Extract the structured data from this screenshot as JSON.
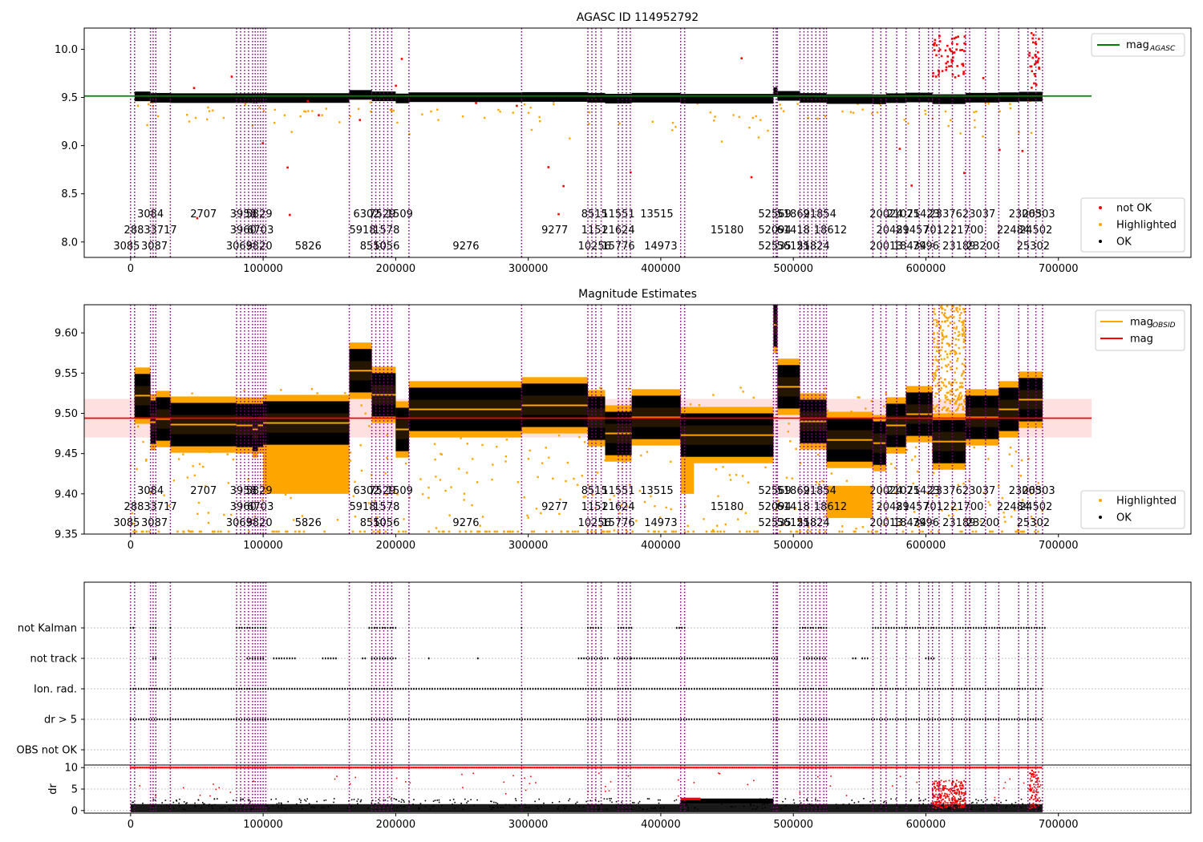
{
  "chart_data": [
    {
      "type": "scatter",
      "title": "AGASC ID 114952792",
      "xlim": [
        -35000,
        800000
      ],
      "ylim": [
        7.84,
        10.22
      ],
      "x_ticks": [
        0,
        100000,
        200000,
        300000,
        400000,
        500000,
        600000,
        700000
      ],
      "x_tick_labels": [
        "0",
        "100000",
        "200000",
        "300000",
        "400000",
        "500000",
        "600000",
        "700000"
      ],
      "y_ticks": [
        8.0,
        8.5,
        9.0,
        9.5,
        10.0
      ],
      "y_tick_labels": [
        "8.0",
        "8.5",
        "9.0",
        "9.5",
        "10.0"
      ],
      "grid": false,
      "legend_top": {
        "placement": "top-right",
        "entries": [
          {
            "label": "mag",
            "sub": "AGASC",
            "color": "#008000",
            "kind": "line"
          }
        ]
      },
      "legend_bottom": {
        "placement": "bottom-right",
        "entries": [
          {
            "label": "not OK",
            "color": "#ff0000",
            "kind": "dot"
          },
          {
            "label": "Highlighted",
            "color": "#ffa500",
            "kind": "dot"
          },
          {
            "label": "OK",
            "color": "#000000",
            "kind": "dot"
          }
        ]
      },
      "reference_line": {
        "value": 9.515,
        "color": "#008000",
        "x_range": [
          -35000,
          725000
        ]
      }
    },
    {
      "type": "scatter",
      "title": "Magnitude Estimates",
      "xlim": [
        -35000,
        800000
      ],
      "ylim": [
        9.35,
        9.635
      ],
      "x_ticks": [
        0,
        100000,
        200000,
        300000,
        400000,
        500000,
        600000,
        700000
      ],
      "x_tick_labels": [
        "0",
        "100000",
        "200000",
        "300000",
        "400000",
        "500000",
        "600000",
        "700000"
      ],
      "y_ticks": [
        9.35,
        9.4,
        9.45,
        9.5,
        9.55,
        9.6
      ],
      "y_tick_labels": [
        "9.35",
        "9.40",
        "9.45",
        "9.50",
        "9.55",
        "9.60"
      ],
      "grid": false,
      "legend_top": {
        "placement": "top-right",
        "entries": [
          {
            "label": "mag",
            "sub": "OBSID",
            "color": "#ffa500",
            "kind": "line"
          },
          {
            "label": "mag",
            "sub": "",
            "color": "#ff0000",
            "kind": "line"
          }
        ]
      },
      "legend_bottom": {
        "placement": "bottom-right",
        "entries": [
          {
            "label": "Highlighted",
            "color": "#ffa500",
            "kind": "dot"
          },
          {
            "label": "OK",
            "color": "#000000",
            "kind": "dot"
          }
        ]
      },
      "mean_line": {
        "value": 9.494,
        "color": "#ff0000",
        "band": [
          9.47,
          9.518
        ],
        "x_range": [
          -35000,
          725000
        ]
      }
    },
    {
      "type": "scatter",
      "title": "",
      "xlim": [
        -35000,
        800000
      ],
      "ylim": [
        -0.5,
        5.5
      ],
      "y_categories": [
        "OBS not OK",
        "dr > 5",
        "Ion. rad.",
        "not track",
        "not Kalman"
      ],
      "grid": true,
      "flag_rows": {
        "not Kalman": [
          [
            0,
            3000
          ],
          [
            15000,
            20000
          ],
          [
            30000,
            31000
          ],
          [
            80000,
            102000
          ],
          [
            180000,
            200000
          ],
          [
            295000,
            296000
          ],
          [
            345000,
            355000
          ],
          [
            368000,
            378000
          ],
          [
            412000,
            418000
          ],
          [
            485000,
            488000
          ],
          [
            505000,
            525000
          ],
          [
            560000,
            690000
          ]
        ],
        "not track": [
          [
            17000,
            19000
          ],
          [
            88000,
            100000
          ],
          [
            108000,
            125000
          ],
          [
            145000,
            155000
          ],
          [
            175000,
            177000
          ],
          [
            182000,
            200000
          ],
          [
            225000,
            226000
          ],
          [
            262000,
            263000
          ],
          [
            338000,
            360000
          ],
          [
            365000,
            377000
          ],
          [
            378000,
            488000
          ],
          [
            508000,
            525000
          ],
          [
            545000,
            548000
          ],
          [
            552000,
            556000
          ],
          [
            600000,
            606000
          ]
        ],
        "Ion. rad.": [
          [
            0,
            688000
          ]
        ],
        "dr > 5": [
          [
            0,
            688000
          ]
        ],
        "OBS not OK": []
      }
    },
    {
      "type": "scatter",
      "title": "",
      "ylabel": "dr",
      "xlim": [
        -35000,
        800000
      ],
      "ylim": [
        -0.6,
        10.6
      ],
      "x_ticks": [
        0,
        100000,
        200000,
        300000,
        400000,
        500000,
        600000,
        700000
      ],
      "x_tick_labels": [
        "0",
        "100000",
        "200000",
        "300000",
        "400000",
        "500000",
        "600000",
        "700000"
      ],
      "y_ticks": [
        0,
        5,
        10
      ],
      "y_tick_labels": [
        "0",
        "5",
        "10"
      ],
      "grid": true
    }
  ],
  "segments": [
    {
      "start": 0,
      "end": 3000,
      "label": "3085",
      "row": 2,
      "lx": -3000
    },
    {
      "start": 3000,
      "end": 15000,
      "label": "3084",
      "row": 0,
      "lx": 15000,
      "mag": 9.522
    },
    {
      "start": 15000,
      "end": 19000,
      "label": "2883",
      "row": 1,
      "lx": 5000,
      "mag": 9.489
    },
    {
      "start": 19000,
      "end": 30000,
      "label": "3717",
      "row": 1,
      "lx": 25000,
      "mag": 9.493
    },
    {
      "start": 19000,
      "end": 30000,
      "label": "3087",
      "row": 2,
      "lx": 18000
    },
    {
      "start": 30000,
      "end": 80000,
      "label": "2707",
      "row": 0,
      "lx": 55000,
      "mag": 9.486
    },
    {
      "start": 80000,
      "end": 100000,
      "label": "3958",
      "row": 0,
      "lx": 85000,
      "mag": 9.485
    },
    {
      "start": 80000,
      "end": 100000,
      "label": "3960",
      "row": 1,
      "lx": 85000
    },
    {
      "start": 80000,
      "end": 100000,
      "label": "3069",
      "row": 2,
      "lx": 82000
    },
    {
      "start": 92000,
      "end": 96000,
      "label": "5829",
      "row": 0,
      "lx": 97000,
      "mag": 9.48
    },
    {
      "start": 92000,
      "end": 96000,
      "label": "6703",
      "row": 1,
      "lx": 98000
    },
    {
      "start": 92000,
      "end": 96000,
      "label": "3820",
      "row": 2,
      "lx": 97000
    },
    {
      "start": 100000,
      "end": 165000,
      "label": "5826",
      "row": 2,
      "lx": 134000,
      "mag": 9.488
    },
    {
      "start": 165000,
      "end": 182000,
      "label": "6302",
      "row": 0,
      "lx": 178000,
      "mag": 9.553
    },
    {
      "start": 165000,
      "end": 182000,
      "label": "5918",
      "row": 1,
      "lx": 175000
    },
    {
      "start": 165000,
      "end": 182000,
      "label": "8550",
      "row": 2,
      "lx": 183000
    },
    {
      "start": 182000,
      "end": 200000,
      "label": "7529",
      "row": 0,
      "lx": 190000,
      "mag": 9.523
    },
    {
      "start": 182000,
      "end": 200000,
      "label": "1578",
      "row": 1,
      "lx": 193000
    },
    {
      "start": 182000,
      "end": 200000,
      "label": "1056",
      "row": 2,
      "lx": 193000
    },
    {
      "start": 200000,
      "end": 210000,
      "label": "1509",
      "row": 0,
      "lx": 203000,
      "mag": 9.48
    },
    {
      "start": 210000,
      "end": 295000,
      "label": "9276",
      "row": 2,
      "lx": 253000,
      "mag": 9.505
    },
    {
      "start": 295000,
      "end": 345000,
      "label": "9277",
      "row": 1,
      "lx": 320000,
      "mag": 9.51
    },
    {
      "start": 345000,
      "end": 358000,
      "label": "8515",
      "row": 0,
      "lx": 350000,
      "mag": 9.494
    },
    {
      "start": 345000,
      "end": 358000,
      "label": "1151",
      "row": 1,
      "lx": 350000
    },
    {
      "start": 345000,
      "end": 358000,
      "label": "10256",
      "row": 2,
      "lx": 350000
    },
    {
      "start": 358000,
      "end": 378000,
      "label": "11551",
      "row": 0,
      "lx": 368000,
      "mag": 9.475
    },
    {
      "start": 358000,
      "end": 378000,
      "label": "21624",
      "row": 1,
      "lx": 368000
    },
    {
      "start": 358000,
      "end": 378000,
      "label": "15776",
      "row": 2,
      "lx": 368000
    },
    {
      "start": 378000,
      "end": 415000,
      "label": "13515",
      "row": 0,
      "lx": 397000,
      "mag": 9.495
    },
    {
      "start": 378000,
      "end": 415000,
      "label": "14973",
      "row": 2,
      "lx": 400000
    },
    {
      "start": 415000,
      "end": 485000,
      "label": "15180",
      "row": 1,
      "lx": 450000,
      "mag": 9.473
    },
    {
      "start": 485000,
      "end": 488000,
      "label": "52569",
      "row": 0,
      "lx": 486000,
      "mag": 9.61
    },
    {
      "start": 485000,
      "end": 488000,
      "label": "52094",
      "row": 1,
      "lx": 486000
    },
    {
      "start": 485000,
      "end": 488000,
      "label": "52535",
      "row": 2,
      "lx": 486000
    },
    {
      "start": 488000,
      "end": 505000,
      "label": "51869",
      "row": 0,
      "lx": 500000,
      "mag": 9.533
    },
    {
      "start": 488000,
      "end": 505000,
      "label": "61418",
      "row": 1,
      "lx": 500000
    },
    {
      "start": 488000,
      "end": 505000,
      "label": "56155",
      "row": 2,
      "lx": 500000
    },
    {
      "start": 505000,
      "end": 525000,
      "label": "21854",
      "row": 0,
      "lx": 520000,
      "mag": 9.49
    },
    {
      "start": 505000,
      "end": 525000,
      "label": "18612",
      "row": 1,
      "lx": 528000
    },
    {
      "start": 505000,
      "end": 525000,
      "label": "21824",
      "row": 2,
      "lx": 515000
    },
    {
      "start": 525000,
      "end": 560000,
      "label": "20024",
      "row": 0,
      "lx": 570000,
      "mag": 9.467
    },
    {
      "start": 560000,
      "end": 570000,
      "label": "20481",
      "row": 1,
      "lx": 575000,
      "mag": 9.463
    },
    {
      "start": 560000,
      "end": 570000,
      "label": "20013",
      "row": 2,
      "lx": 570000
    },
    {
      "start": 570000,
      "end": 585000,
      "label": "21075",
      "row": 0,
      "lx": 583000,
      "mag": 9.485
    },
    {
      "start": 570000,
      "end": 585000,
      "label": "29457",
      "row": 1,
      "lx": 590000
    },
    {
      "start": 570000,
      "end": 585000,
      "label": "18434",
      "row": 2,
      "lx": 588000
    },
    {
      "start": 585000,
      "end": 605000,
      "label": "21423",
      "row": 0,
      "lx": 598000,
      "mag": 9.499
    },
    {
      "start": 585000,
      "end": 605000,
      "label": "7012",
      "row": 1,
      "lx": 608000
    },
    {
      "start": 585000,
      "end": 605000,
      "label": "7996",
      "row": 2,
      "lx": 600000
    },
    {
      "start": 605000,
      "end": 630000,
      "label": "23376",
      "row": 0,
      "lx": 615000,
      "mag": 9.465
    },
    {
      "start": 605000,
      "end": 630000,
      "label": "21700",
      "row": 1,
      "lx": 631000
    },
    {
      "start": 605000,
      "end": 630000,
      "label": "23189",
      "row": 2,
      "lx": 625000
    },
    {
      "start": 630000,
      "end": 655000,
      "label": "23037",
      "row": 0,
      "lx": 640000,
      "mag": 9.495
    },
    {
      "start": 630000,
      "end": 655000,
      "label": "23200",
      "row": 2,
      "lx": 643000
    },
    {
      "start": 655000,
      "end": 670000,
      "label": "23003",
      "row": 0,
      "lx": 675000,
      "mag": 9.505
    },
    {
      "start": 655000,
      "end": 670000,
      "label": "22484",
      "row": 1,
      "lx": 666000
    },
    {
      "start": 670000,
      "end": 688000,
      "label": "26503",
      "row": 0,
      "lx": 685000,
      "mag": 9.517
    },
    {
      "start": 670000,
      "end": 688000,
      "label": "24502",
      "row": 1,
      "lx": 683000
    },
    {
      "start": 670000,
      "end": 688000,
      "label": "25302",
      "row": 2,
      "lx": 681000
    }
  ],
  "obsid_lines": [
    0,
    3000,
    15000,
    17000,
    19000,
    30000,
    80000,
    83000,
    86000,
    89000,
    92000,
    94000,
    96000,
    98000,
    100000,
    102000,
    165000,
    182000,
    185000,
    188000,
    191000,
    194000,
    197000,
    210000,
    295000,
    345000,
    348000,
    351000,
    355000,
    368000,
    371000,
    374000,
    377000,
    415000,
    418000,
    485000,
    487000,
    488000,
    505000,
    508000,
    511000,
    514000,
    517000,
    520000,
    523000,
    525000,
    560000,
    566000,
    570000,
    578000,
    585000,
    595000,
    602000,
    605000,
    610000,
    620000,
    630000,
    633000,
    645000,
    655000,
    670000,
    677000,
    683000,
    688000
  ],
  "colors": {
    "ok": "#000000",
    "highlighted": "#ffa500",
    "not_ok": "#ff0000",
    "agasc": "#008000",
    "obsid_line": "#800080",
    "band": "#ffcccc"
  }
}
